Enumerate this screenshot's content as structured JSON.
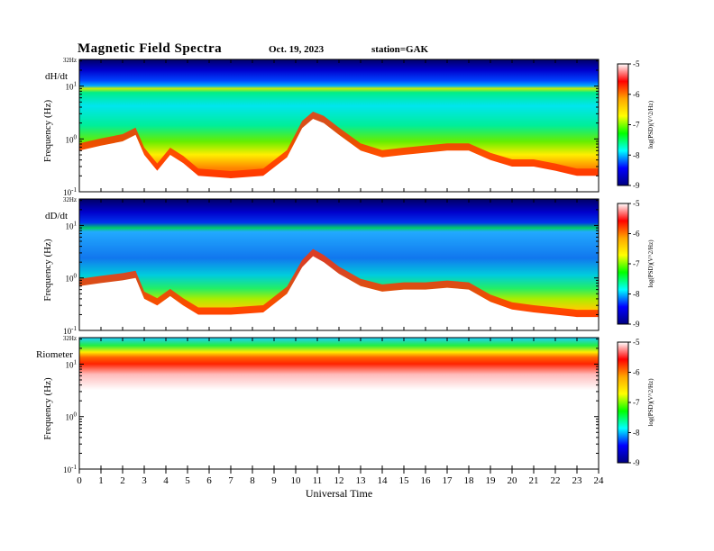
{
  "header": {
    "title": "Magnetic  Field  Spectra",
    "date": "Oct. 19, 2023",
    "station": "station=GAK"
  },
  "chart_data": {
    "type": "heatmap",
    "xlabel": "Universal Time",
    "x_ticks": [
      "0",
      "1",
      "2",
      "3",
      "4",
      "5",
      "6",
      "7",
      "8",
      "9",
      "10",
      "11",
      "12",
      "13",
      "14",
      "15",
      "16",
      "17",
      "18",
      "19",
      "20",
      "21",
      "22",
      "23",
      "24"
    ],
    "xlim": [
      0,
      24
    ],
    "ylabel": "Frequency  (Hz)",
    "y_scale": "log",
    "ylim": [
      0.1,
      32
    ],
    "y_ticks": [
      {
        "value": 32,
        "label": "32Hz"
      },
      {
        "value": 10,
        "label": "10",
        "exp": "1"
      },
      {
        "value": 1,
        "label": "10",
        "exp": "0"
      },
      {
        "value": 0.1,
        "label": "10",
        "exp": "-1"
      }
    ],
    "colorbar": {
      "label": "log(PSD)(V^2/Hz)",
      "range": [
        -9,
        -5
      ],
      "ticks": [
        "-5",
        "-6",
        "-7",
        "-8",
        "-9"
      ],
      "colors": [
        "#ffffff",
        "#ff0000",
        "#ffa500",
        "#ffff00",
        "#00ff00",
        "#00ffff",
        "#0000ff",
        "#000080"
      ]
    },
    "panels": [
      {
        "name": "dH/dt",
        "profile": {
          "hours": [
            0,
            1,
            2,
            2.6,
            3,
            3.6,
            4.2,
            4.8,
            5.5,
            7,
            8.5,
            9.6,
            10.3,
            10.8,
            11.3,
            12,
            13,
            14,
            15,
            16,
            17,
            18,
            19,
            20,
            21,
            22,
            23,
            24
          ],
          "edge_hz": [
            0.6,
            0.75,
            0.9,
            1.2,
            0.5,
            0.25,
            0.5,
            0.35,
            0.2,
            0.18,
            0.2,
            0.45,
            1.6,
            2.4,
            2.0,
            1.2,
            0.6,
            0.45,
            0.5,
            0.55,
            0.6,
            0.6,
            0.4,
            0.3,
            0.3,
            0.25,
            0.2,
            0.2
          ]
        }
      },
      {
        "name": "dD/dt",
        "profile": {
          "hours": [
            0,
            1,
            2,
            2.6,
            3,
            3.6,
            4.2,
            4.8,
            5.5,
            7,
            8.5,
            9.6,
            10.3,
            10.8,
            11.3,
            12,
            13,
            14,
            15,
            16,
            17,
            18,
            19,
            20,
            21,
            22,
            23,
            24
          ],
          "edge_hz": [
            0.7,
            0.8,
            0.9,
            1.0,
            0.4,
            0.3,
            0.45,
            0.3,
            0.2,
            0.2,
            0.22,
            0.5,
            1.6,
            2.6,
            2.0,
            1.2,
            0.7,
            0.55,
            0.6,
            0.6,
            0.65,
            0.6,
            0.35,
            0.25,
            0.22,
            0.2,
            0.18,
            0.18
          ]
        }
      },
      {
        "name": "Riometer",
        "profile": {
          "hours": [
            0,
            24
          ],
          "edge_hz": [
            12,
            12
          ]
        }
      }
    ]
  }
}
